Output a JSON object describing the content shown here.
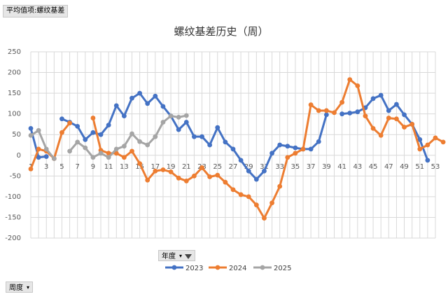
{
  "pivot": {
    "value_field": "平均值项:螺纹基差",
    "filter_field": "年度",
    "row_field": "周度"
  },
  "chart_data": {
    "type": "line",
    "title": "螺纹基差历史（周）",
    "xlabel": "",
    "ylabel": "",
    "ylim": [
      -200,
      250
    ],
    "yticks": [
      -200,
      -150,
      -100,
      -50,
      0,
      50,
      100,
      150,
      200,
      250
    ],
    "xlim": [
      1,
      53
    ],
    "xticks": [
      1,
      3,
      5,
      7,
      9,
      11,
      13,
      15,
      17,
      19,
      21,
      23,
      25,
      27,
      29,
      31,
      33,
      35,
      37,
      39,
      41,
      43,
      45,
      47,
      49,
      51,
      53
    ],
    "grid": true,
    "legend_position": "bottom",
    "series": [
      {
        "name": "2023",
        "color": "#4472c4",
        "values": [
          65,
          -5,
          -3,
          null,
          88,
          80,
          70,
          38,
          55,
          50,
          73,
          120,
          95,
          138,
          150,
          125,
          143,
          118,
          95,
          62,
          80,
          45,
          45,
          25,
          67,
          32,
          15,
          -12,
          -38,
          -58,
          -38,
          5,
          25,
          22,
          18,
          15,
          15,
          33,
          98,
          null,
          100,
          102,
          105,
          115,
          137,
          145,
          108,
          123,
          98,
          75,
          38,
          -12,
          null
        ]
      },
      {
        "name": "2024",
        "color": "#ed7d31",
        "values": [
          -33,
          15,
          10,
          -8,
          55,
          78,
          null,
          null,
          90,
          12,
          5,
          5,
          -5,
          10,
          -20,
          -60,
          -38,
          -35,
          -40,
          -55,
          -62,
          -50,
          -30,
          -52,
          -48,
          -65,
          -83,
          -95,
          -100,
          -120,
          -152,
          -115,
          -75,
          -5,
          5,
          15,
          122,
          108,
          108,
          103,
          128,
          183,
          168,
          95,
          65,
          48,
          90,
          88,
          68,
          75,
          15,
          25,
          42,
          32
        ]
      },
      {
        "name": "2025",
        "color": "#a5a5a5",
        "values": [
          48,
          60,
          15,
          -8,
          null,
          10,
          32,
          18,
          -5,
          5,
          -5,
          15,
          22,
          52,
          33,
          25,
          45,
          80,
          95,
          92,
          96
        ]
      }
    ]
  }
}
